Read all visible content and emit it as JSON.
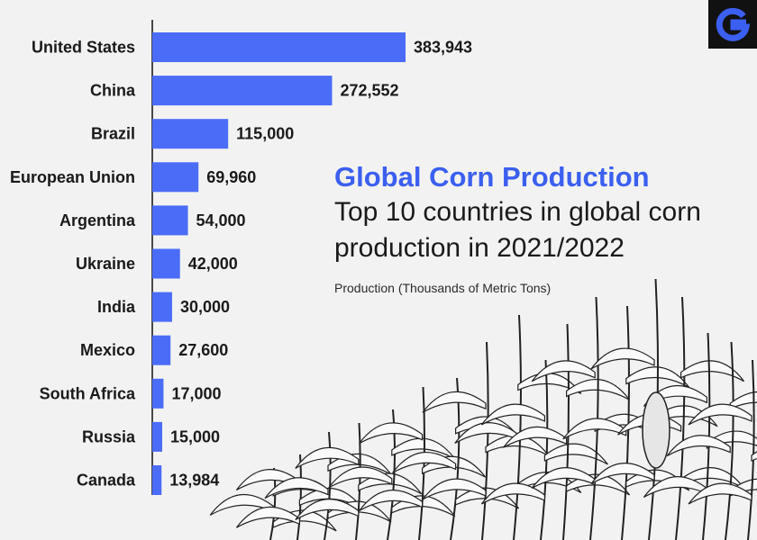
{
  "title": "Global Corn Production",
  "subtitle": "Top 10 countries in global corn production in 2021/2022",
  "unit_note": "Production (Thousands of Metric Tons)",
  "brand_color": "#3b5ff0",
  "logo_icon": "g-logo-icon",
  "chart_data": {
    "type": "bar",
    "orientation": "horizontal",
    "title": "Global Corn Production",
    "subtitle": "Top 10 countries in global corn production in 2021/2022",
    "xlabel": "Production (Thousands of Metric Tons)",
    "ylabel": "",
    "categories": [
      "United States",
      "China",
      "Brazil",
      "European Union",
      "Argentina",
      "Ukraine",
      "India",
      "Mexico",
      "South Africa",
      "Russia",
      "Canada"
    ],
    "values": [
      383943,
      272552,
      115000,
      69960,
      54000,
      42000,
      30000,
      27600,
      17000,
      15000,
      13984
    ],
    "value_labels": [
      "383,943",
      "272,552",
      "115,000",
      "69,960",
      "54,000",
      "42,000",
      "30,000",
      "27,600",
      "17,000",
      "15,000",
      "13,984"
    ],
    "xlim": [
      0,
      383943
    ],
    "bar_color": "#4a6cf7",
    "grid": false
  }
}
